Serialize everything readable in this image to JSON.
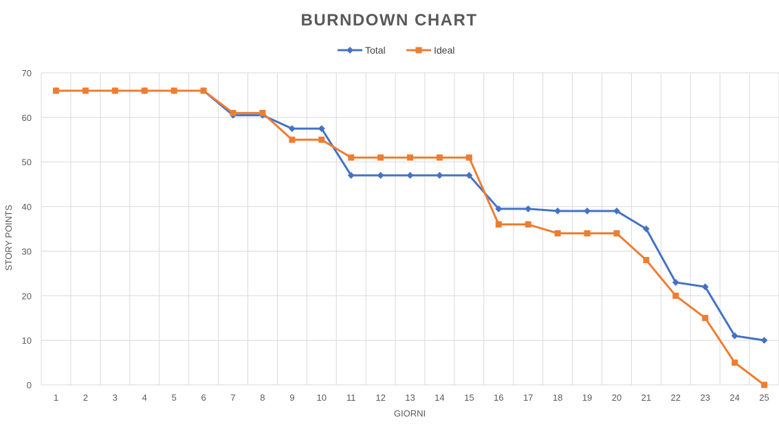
{
  "chart_data": {
    "type": "line",
    "title": "BURNDOWN CHART",
    "xlabel": "GIORNI",
    "ylabel": "STORY POINTS",
    "categories": [
      "1",
      "2",
      "3",
      "4",
      "5",
      "6",
      "7",
      "8",
      "9",
      "10",
      "11",
      "12",
      "13",
      "14",
      "15",
      "16",
      "17",
      "18",
      "19",
      "20",
      "21",
      "22",
      "23",
      "24",
      "25"
    ],
    "ylim": [
      0,
      70
    ],
    "yticks": [
      0,
      10,
      20,
      30,
      40,
      50,
      60,
      70
    ],
    "grid": true,
    "legend_position": "top",
    "series": [
      {
        "name": "Total",
        "color": "#4472c4",
        "marker": "diamond",
        "values": [
          66,
          66,
          66,
          66,
          66,
          66,
          60.5,
          60.5,
          57.5,
          57.5,
          47,
          47,
          47,
          47,
          47,
          39.5,
          39.5,
          39,
          39,
          39,
          35,
          23,
          22,
          11,
          10
        ]
      },
      {
        "name": "Ideal",
        "color": "#ed7d31",
        "marker": "square",
        "values": [
          66,
          66,
          66,
          66,
          66,
          66,
          61,
          61,
          55,
          55,
          51,
          51,
          51,
          51,
          51,
          36,
          36,
          34,
          34,
          34,
          28,
          20,
          15,
          5,
          0
        ]
      }
    ]
  }
}
